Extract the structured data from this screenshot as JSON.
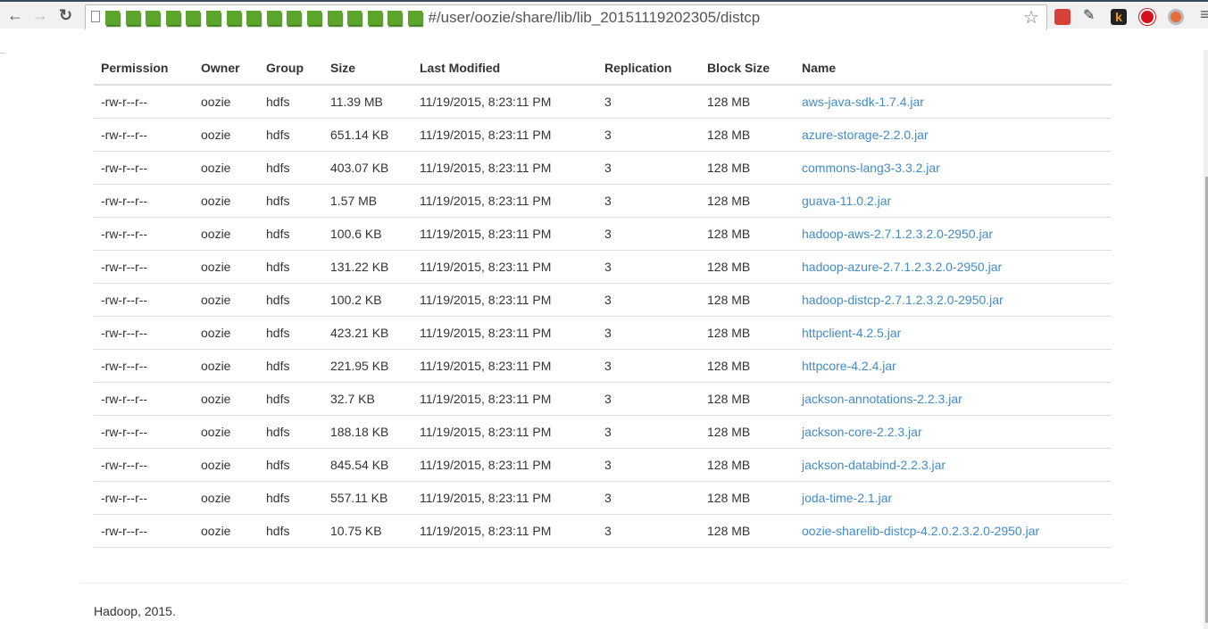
{
  "browser": {
    "url_visible": "#/user/oozie/share/lib/lib_20151119202305/distcp",
    "redacted_blocks": 16,
    "icons": [
      "back-arrow-icon",
      "forward-arrow-icon",
      "reload-icon",
      "page-icon",
      "bookmark-star-icon",
      "extension-a-icon",
      "extension-lamp-icon",
      "extension-k-icon",
      "adblock-icon",
      "extension-record-icon",
      "menu-icon"
    ]
  },
  "table": {
    "headers": [
      "Permission",
      "Owner",
      "Group",
      "Size",
      "Last Modified",
      "Replication",
      "Block Size",
      "Name"
    ],
    "rows": [
      [
        "-rw-r--r--",
        "oozie",
        "hdfs",
        "11.39 MB",
        "11/19/2015, 8:23:11 PM",
        "3",
        "128 MB",
        "aws-java-sdk-1.7.4.jar"
      ],
      [
        "-rw-r--r--",
        "oozie",
        "hdfs",
        "651.14 KB",
        "11/19/2015, 8:23:11 PM",
        "3",
        "128 MB",
        "azure-storage-2.2.0.jar"
      ],
      [
        "-rw-r--r--",
        "oozie",
        "hdfs",
        "403.07 KB",
        "11/19/2015, 8:23:11 PM",
        "3",
        "128 MB",
        "commons-lang3-3.3.2.jar"
      ],
      [
        "-rw-r--r--",
        "oozie",
        "hdfs",
        "1.57 MB",
        "11/19/2015, 8:23:11 PM",
        "3",
        "128 MB",
        "guava-11.0.2.jar"
      ],
      [
        "-rw-r--r--",
        "oozie",
        "hdfs",
        "100.6 KB",
        "11/19/2015, 8:23:11 PM",
        "3",
        "128 MB",
        "hadoop-aws-2.7.1.2.3.2.0-2950.jar"
      ],
      [
        "-rw-r--r--",
        "oozie",
        "hdfs",
        "131.22 KB",
        "11/19/2015, 8:23:11 PM",
        "3",
        "128 MB",
        "hadoop-azure-2.7.1.2.3.2.0-2950.jar"
      ],
      [
        "-rw-r--r--",
        "oozie",
        "hdfs",
        "100.2 KB",
        "11/19/2015, 8:23:11 PM",
        "3",
        "128 MB",
        "hadoop-distcp-2.7.1.2.3.2.0-2950.jar"
      ],
      [
        "-rw-r--r--",
        "oozie",
        "hdfs",
        "423.21 KB",
        "11/19/2015, 8:23:11 PM",
        "3",
        "128 MB",
        "httpclient-4.2.5.jar"
      ],
      [
        "-rw-r--r--",
        "oozie",
        "hdfs",
        "221.95 KB",
        "11/19/2015, 8:23:11 PM",
        "3",
        "128 MB",
        "httpcore-4.2.4.jar"
      ],
      [
        "-rw-r--r--",
        "oozie",
        "hdfs",
        "32.7 KB",
        "11/19/2015, 8:23:11 PM",
        "3",
        "128 MB",
        "jackson-annotations-2.2.3.jar"
      ],
      [
        "-rw-r--r--",
        "oozie",
        "hdfs",
        "188.18 KB",
        "11/19/2015, 8:23:11 PM",
        "3",
        "128 MB",
        "jackson-core-2.2.3.jar"
      ],
      [
        "-rw-r--r--",
        "oozie",
        "hdfs",
        "845.54 KB",
        "11/19/2015, 8:23:11 PM",
        "3",
        "128 MB",
        "jackson-databind-2.2.3.jar"
      ],
      [
        "-rw-r--r--",
        "oozie",
        "hdfs",
        "557.11 KB",
        "11/19/2015, 8:23:11 PM",
        "3",
        "128 MB",
        "joda-time-2.1.jar"
      ],
      [
        "-rw-r--r--",
        "oozie",
        "hdfs",
        "10.75 KB",
        "11/19/2015, 8:23:11 PM",
        "3",
        "128 MB",
        "oozie-sharelib-distcp-4.2.0.2.3.2.0-2950.jar"
      ]
    ]
  },
  "footer": {
    "text": "Hadoop, 2015."
  },
  "colors": {
    "link": "#428bca",
    "text": "#333333",
    "redaction": "#5ba52a"
  }
}
